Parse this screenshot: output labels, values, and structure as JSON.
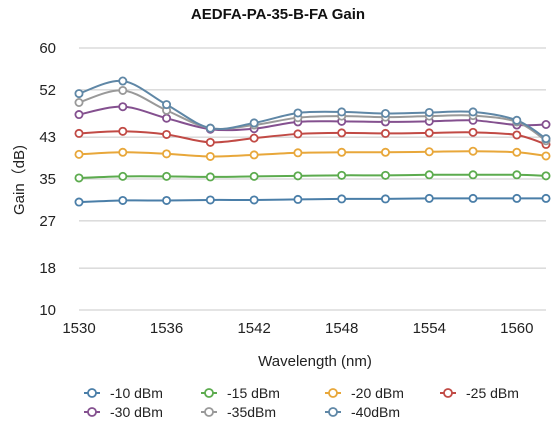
{
  "chart_data": {
    "type": "line",
    "title": "AEDFA-PA-35-B-FA Gain",
    "xlabel": "Wavelength (nm)",
    "ylabel": "Gain（dB)",
    "xlim": [
      1530,
      1562
    ],
    "ylim": [
      10,
      60
    ],
    "xticks": [
      1530,
      1536,
      1542,
      1548,
      1554,
      1560
    ],
    "yticks": [
      10,
      18,
      27,
      35,
      43,
      52,
      60
    ],
    "grid": "horizontal",
    "legend_position": "bottom",
    "x": [
      1530,
      1533,
      1536,
      1539,
      1542,
      1545,
      1548,
      1551,
      1554,
      1557,
      1560,
      1562
    ],
    "series": [
      {
        "name": "-10 dBm",
        "color": "#4a7ea8",
        "values": [
          30.6,
          30.9,
          30.9,
          31.0,
          31.0,
          31.1,
          31.2,
          31.2,
          31.3,
          31.3,
          31.3,
          31.3
        ]
      },
      {
        "name": "-15 dBm",
        "color": "#5cab4e",
        "values": [
          35.2,
          35.5,
          35.5,
          35.4,
          35.5,
          35.6,
          35.7,
          35.7,
          35.8,
          35.8,
          35.8,
          35.6
        ]
      },
      {
        "name": "-20 dBm",
        "color": "#e8a73a",
        "values": [
          39.7,
          40.1,
          39.8,
          39.3,
          39.6,
          40.0,
          40.1,
          40.1,
          40.2,
          40.3,
          40.1,
          39.4
        ]
      },
      {
        "name": "-25 dBm",
        "color": "#c14a45",
        "values": [
          43.7,
          44.1,
          43.5,
          42.0,
          42.8,
          43.6,
          43.8,
          43.7,
          43.8,
          43.9,
          43.4,
          41.6
        ]
      },
      {
        "name": "-30 dBm",
        "color": "#84508f",
        "values": [
          47.3,
          48.8,
          46.6,
          44.5,
          44.6,
          45.9,
          46.0,
          45.9,
          46.0,
          46.2,
          45.3,
          45.4
        ]
      },
      {
        "name": "-35dBm",
        "color": "#999999",
        "values": [
          49.6,
          51.9,
          48.1,
          44.7,
          45.3,
          46.7,
          47.0,
          46.8,
          47.0,
          47.1,
          45.9,
          42.3
        ]
      },
      {
        "name": "-40dBm",
        "color": "#5f87a6",
        "values": [
          51.3,
          53.7,
          49.2,
          44.7,
          45.7,
          47.6,
          47.8,
          47.5,
          47.7,
          47.8,
          46.2,
          42.7
        ]
      }
    ]
  }
}
